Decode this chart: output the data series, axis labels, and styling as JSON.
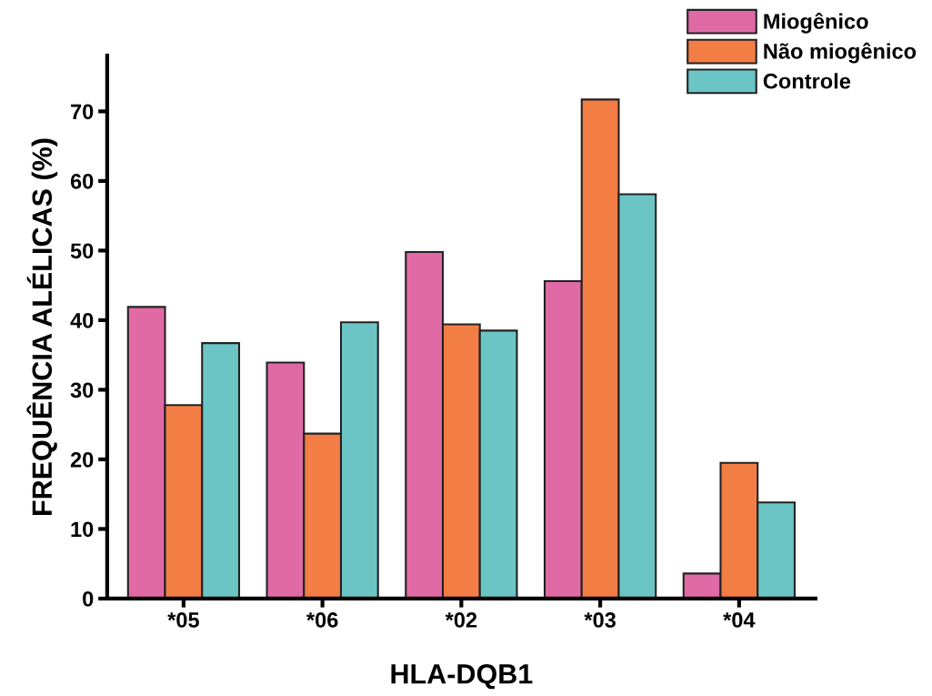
{
  "chart_data": {
    "type": "bar",
    "xlabel": "HLA-DQB1",
    "ylabel": "FREQUÊNCIA ALÉLICAS (%)",
    "categories": [
      "*05",
      "*06",
      "*02",
      "*03",
      "*04"
    ],
    "series": [
      {
        "name": "Miogênico",
        "color": "#e06aa6",
        "values": [
          41.9,
          33.9,
          49.8,
          45.6,
          3.6
        ]
      },
      {
        "name": "Não miogênico",
        "color": "#f27d45",
        "values": [
          27.8,
          23.7,
          39.4,
          71.7,
          19.5
        ]
      },
      {
        "name": "Controle",
        "color": "#6cc5c5",
        "values": [
          36.7,
          39.7,
          38.5,
          58.1,
          13.8
        ]
      }
    ],
    "ylim": [
      0,
      78
    ],
    "yticks": [
      0,
      10,
      20,
      30,
      40,
      50,
      60,
      70
    ],
    "grid": false,
    "legend": "top right"
  }
}
